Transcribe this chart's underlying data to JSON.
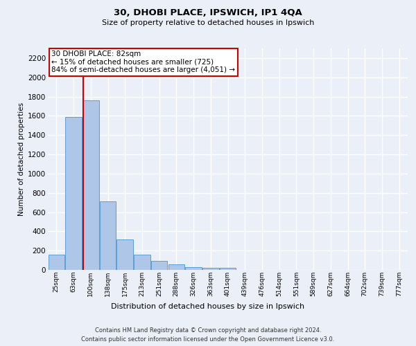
{
  "title_line1": "30, DHOBI PLACE, IPSWICH, IP1 4QA",
  "title_line2": "Size of property relative to detached houses in Ipswich",
  "xlabel": "Distribution of detached houses by size in Ipswich",
  "ylabel": "Number of detached properties",
  "bar_labels": [
    "25sqm",
    "63sqm",
    "100sqm",
    "138sqm",
    "175sqm",
    "213sqm",
    "251sqm",
    "288sqm",
    "326sqm",
    "363sqm",
    "401sqm",
    "439sqm",
    "476sqm",
    "514sqm",
    "551sqm",
    "589sqm",
    "627sqm",
    "664sqm",
    "702sqm",
    "739sqm",
    "777sqm"
  ],
  "bar_values": [
    160,
    1585,
    1760,
    710,
    315,
    160,
    90,
    55,
    30,
    20,
    20,
    0,
    0,
    0,
    0,
    0,
    0,
    0,
    0,
    0,
    0
  ],
  "bar_color": "#aec6e8",
  "bar_edgecolor": "#5a9fd4",
  "background_color": "#eaeff8",
  "plot_bg_color": "#eaeff8",
  "grid_color": "#ffffff",
  "vline_x": 1.57,
  "vline_color": "#cc0000",
  "annotation_text": "30 DHOBI PLACE: 82sqm\n← 15% of detached houses are smaller (725)\n84% of semi-detached houses are larger (4,051) →",
  "annotation_box_color": "#ffffff",
  "annotation_box_edgecolor": "#cc0000",
  "ylim": [
    0,
    2300
  ],
  "yticks": [
    0,
    200,
    400,
    600,
    800,
    1000,
    1200,
    1400,
    1600,
    1800,
    2000,
    2200
  ],
  "footer_line1": "Contains HM Land Registry data © Crown copyright and database right 2024.",
  "footer_line2": "Contains public sector information licensed under the Open Government Licence v3.0.",
  "title1_fontsize": 9.5,
  "title2_fontsize": 8.0,
  "ylabel_fontsize": 7.5,
  "xlabel_fontsize": 8.0,
  "tick_fontsize": 6.5,
  "ytick_fontsize": 7.5,
  "footer_fontsize": 6.0,
  "ann_fontsize": 7.5
}
